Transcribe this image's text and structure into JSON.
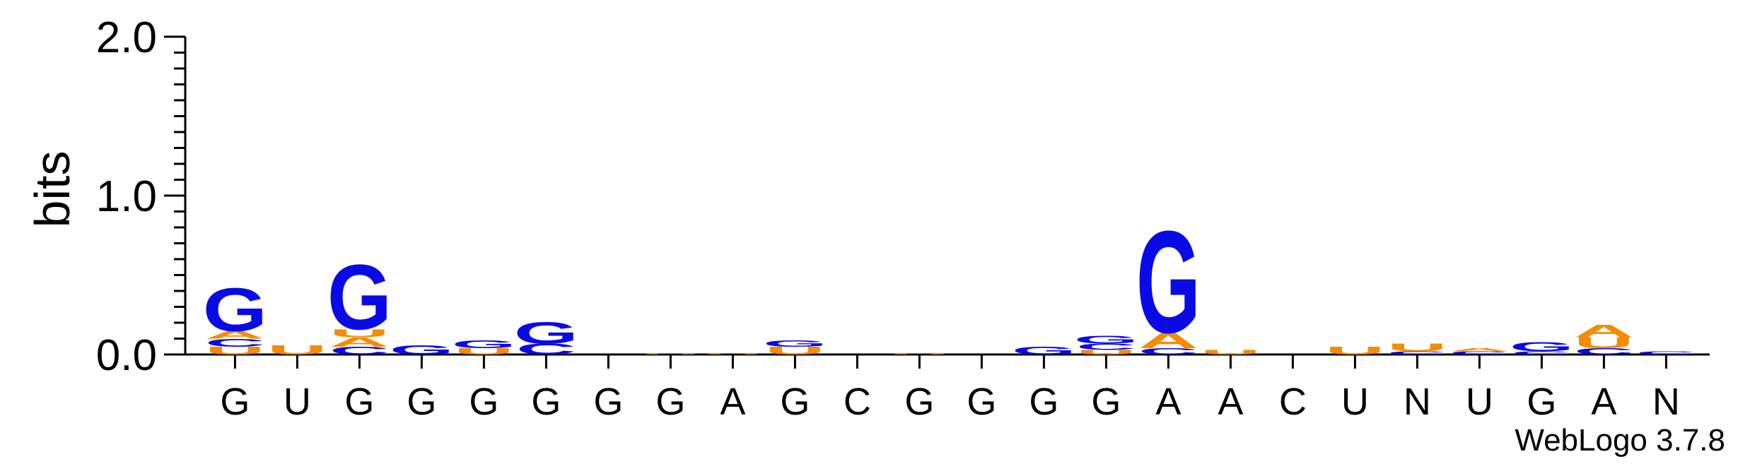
{
  "chart_data": {
    "type": "sequence-logo",
    "ylabel": "bits",
    "ylim": [
      0,
      2.0
    ],
    "yticks": [
      {
        "value": 0.0,
        "label": "0.0"
      },
      {
        "value": 1.0,
        "label": "1.0"
      },
      {
        "value": 2.0,
        "label": "2.0"
      }
    ],
    "colors": {
      "G": "#0a0ae6",
      "C": "#0a0ae6",
      "A": "#f58c00",
      "U": "#f58c00"
    },
    "positions": [
      {
        "label": "G",
        "stack": [
          {
            "letter": "U",
            "value": 0.05
          },
          {
            "letter": "C",
            "value": 0.05
          },
          {
            "letter": "A",
            "value": 0.05
          },
          {
            "letter": "G",
            "value": 0.28
          }
        ]
      },
      {
        "label": "U",
        "stack": [
          {
            "letter": "U",
            "value": 0.06
          }
        ]
      },
      {
        "label": "G",
        "stack": [
          {
            "letter": "C",
            "value": 0.05
          },
          {
            "letter": "A",
            "value": 0.06
          },
          {
            "letter": "U",
            "value": 0.05
          },
          {
            "letter": "G",
            "value": 0.42
          }
        ]
      },
      {
        "label": "G",
        "stack": [
          {
            "letter": "G",
            "value": 0.06
          }
        ]
      },
      {
        "label": "G",
        "stack": [
          {
            "letter": "U",
            "value": 0.04
          },
          {
            "letter": "G",
            "value": 0.05
          }
        ]
      },
      {
        "label": "G",
        "stack": [
          {
            "letter": "C",
            "value": 0.07
          },
          {
            "letter": "G",
            "value": 0.14
          }
        ]
      },
      {
        "label": "G",
        "stack": []
      },
      {
        "label": "G",
        "stack": [
          {
            "letter": "U",
            "value": 0.01
          }
        ]
      },
      {
        "label": "A",
        "stack": [
          {
            "letter": "U",
            "value": 0.01
          }
        ]
      },
      {
        "label": "G",
        "stack": [
          {
            "letter": "U",
            "value": 0.05
          },
          {
            "letter": "G",
            "value": 0.04
          }
        ]
      },
      {
        "label": "C",
        "stack": []
      },
      {
        "label": "G",
        "stack": [
          {
            "letter": "U",
            "value": 0.01
          }
        ]
      },
      {
        "label": "G",
        "stack": []
      },
      {
        "label": "G",
        "stack": [
          {
            "letter": "G",
            "value": 0.05
          }
        ]
      },
      {
        "label": "G",
        "stack": [
          {
            "letter": "U",
            "value": 0.03
          },
          {
            "letter": "C",
            "value": 0.04
          },
          {
            "letter": "G",
            "value": 0.05
          }
        ]
      },
      {
        "label": "A",
        "stack": [
          {
            "letter": "C",
            "value": 0.04
          },
          {
            "letter": "A",
            "value": 0.1
          },
          {
            "letter": "G",
            "value": 0.66
          }
        ]
      },
      {
        "label": "A",
        "stack": [
          {
            "letter": "U",
            "value": 0.03
          }
        ]
      },
      {
        "label": "C",
        "stack": []
      },
      {
        "label": "U",
        "stack": [
          {
            "letter": "U",
            "value": 0.05
          }
        ]
      },
      {
        "label": "N",
        "stack": [
          {
            "letter": "C",
            "value": 0.02
          },
          {
            "letter": "U",
            "value": 0.05
          }
        ]
      },
      {
        "label": "U",
        "stack": [
          {
            "letter": "C",
            "value": 0.02
          },
          {
            "letter": "A",
            "value": 0.02
          }
        ]
      },
      {
        "label": "G",
        "stack": [
          {
            "letter": "C",
            "value": 0.02
          },
          {
            "letter": "G",
            "value": 0.06
          }
        ]
      },
      {
        "label": "A",
        "stack": [
          {
            "letter": "C",
            "value": 0.04
          },
          {
            "letter": "U",
            "value": 0.07
          },
          {
            "letter": "A",
            "value": 0.08
          }
        ]
      },
      {
        "label": "N",
        "stack": [
          {
            "letter": "C",
            "value": 0.02
          }
        ]
      }
    ]
  },
  "credit": "WebLogo 3.7.8"
}
